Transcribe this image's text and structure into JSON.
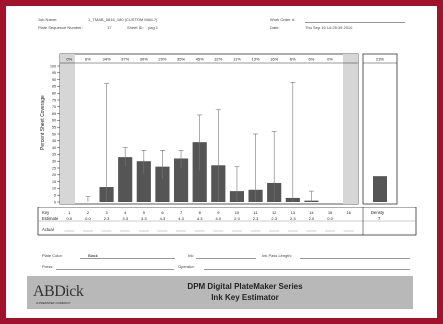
{
  "header": {
    "job_name_label": "Job Name:",
    "job_name_value": "1_TMAB_0816_180 (CUSTOM MAIL?)",
    "plate_seq_label": "Plate Sequence Number:",
    "plate_seq_value": "17",
    "sheet_label": "Sheet ID:",
    "sheet_value": "pag 1",
    "work_order_label": "Work Order #:",
    "date_label": "Date:",
    "date_value": "Thu Sep 16 14:25:39 2010"
  },
  "chart_data": {
    "type": "bar",
    "ylabel": "Percent Sheet Coverage",
    "ylim": [
      0,
      100
    ],
    "yticks": [
      0,
      5,
      10,
      15,
      20,
      25,
      30,
      35,
      40,
      45,
      50,
      55,
      60,
      65,
      70,
      75,
      80,
      85,
      90,
      95,
      100
    ],
    "keys": [
      "1",
      "2",
      "3",
      "4",
      "5",
      "6",
      "7",
      "8",
      "9",
      "10",
      "11",
      "12",
      "13",
      "14",
      "15",
      "16"
    ],
    "percent_labels": [
      "0%",
      "6%",
      "34%",
      "37%",
      "30%",
      "29%",
      "35%",
      "45%",
      "32%",
      "11%",
      "13%",
      "16%",
      "6%",
      "6%",
      "0%",
      ""
    ],
    "values": [
      0,
      0,
      11,
      33,
      30,
      26,
      32,
      44,
      27,
      8,
      9,
      14,
      3,
      1,
      0,
      0
    ],
    "error_high": [
      null,
      4,
      87,
      40,
      38,
      38,
      38,
      64,
      68,
      26,
      50,
      52,
      88,
      8,
      null,
      null
    ],
    "error_low": [
      null,
      0,
      0,
      26,
      21,
      17,
      25,
      23,
      0,
      0,
      0,
      0,
      0,
      0,
      null,
      null
    ],
    "summary": {
      "percent_label": "23%",
      "value": 19
    },
    "row_labels": {
      "key": "Key",
      "estimate": "Estimate",
      "actual": "Actual"
    },
    "key_row": [
      "1",
      "2",
      "3",
      "4",
      "5",
      "6",
      "7",
      "8",
      "9",
      "10",
      "11",
      "12",
      "13",
      "14",
      "15",
      "16"
    ],
    "estimate_row": [
      "0.0",
      "0.0",
      "2.3",
      "3.3",
      "3.3",
      "4.3",
      "4.3",
      "4.3",
      "4.0",
      "2.3",
      "2.3",
      "2.3",
      "2.3",
      "2.0",
      "0.0",
      ""
    ],
    "summary_row": {
      "key_label": "Densty",
      "estimate": "7"
    }
  },
  "footer_fields": {
    "plate_color_label": "Plate Color:",
    "plate_color_value": "Black",
    "ink_label": "Ink:",
    "ink_pass_label": "Ink Pass Length:",
    "press_label": "Press:",
    "operator_label": "Operator:"
  },
  "banner": {
    "logo_text": "ABDick",
    "logo_tag": "A PRESSTEK COMPANY",
    "title_line1": "DPM Digital PlateMaker Series",
    "title_line2": "Ink Key Estimator",
    "colors": {
      "frame": "#a3122d",
      "bar": "#555555",
      "banner": "#b8b8b8"
    }
  }
}
